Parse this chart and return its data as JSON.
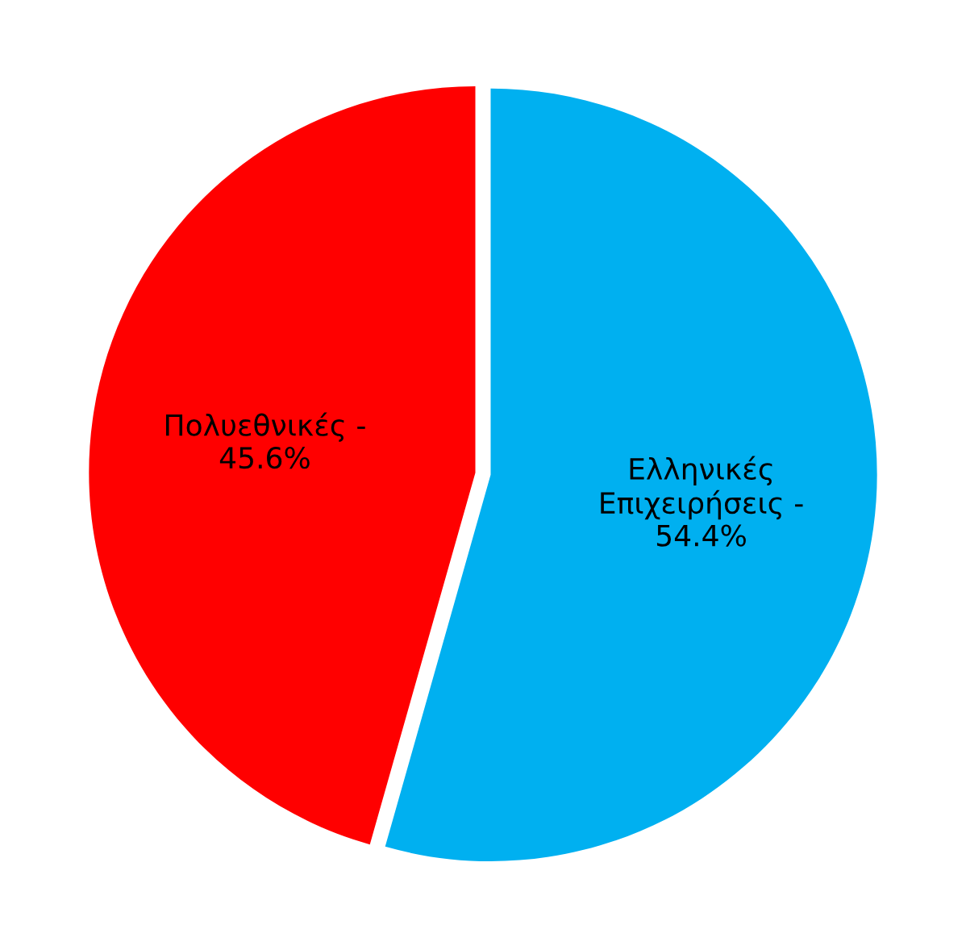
{
  "chart_data": {
    "type": "pie",
    "categories": [
      "Ελληνικές Επιχειρήσεις -",
      "Πολυεθνικές -"
    ],
    "values": [
      54.4,
      45.6
    ],
    "value_labels": [
      "54.4%",
      "45.6%"
    ],
    "colors": [
      "#00b0f0",
      "#ff0000"
    ]
  }
}
